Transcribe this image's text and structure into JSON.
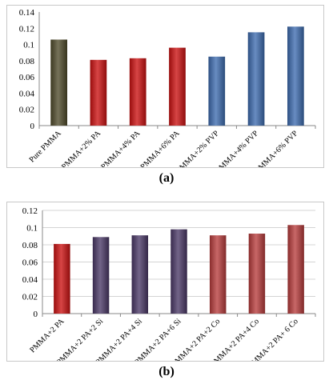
{
  "chart_data": [
    {
      "type": "bar",
      "caption": "(a)",
      "categories": [
        "Pure PMMA",
        "PMMA+2% PA",
        "PMMA+4% PA",
        "PMMA+6% PA",
        "PMMA+2% PVP",
        "PMMA+4% PVP",
        "PMMA+6% PVP"
      ],
      "values": [
        0.106,
        0.081,
        0.083,
        0.096,
        0.085,
        0.115,
        0.122
      ],
      "colors": [
        "#4f4a2a",
        "#cc1111",
        "#cc1111",
        "#cc1111",
        "#3e6cb0",
        "#3e6cb0",
        "#3e6cb0"
      ],
      "ylim": [
        0,
        0.14
      ],
      "yticks": [
        "0",
        "0.02",
        "0.04",
        "0.06",
        "0.08",
        "0.1",
        "0.12",
        "0.14"
      ],
      "grid": false
    },
    {
      "type": "bar",
      "caption": "(b)",
      "categories": [
        "PMMA+2 PA",
        "PMMA+2 PA+2 Si",
        "PMMA+2 PA+4 Si",
        "PMMA+2 PA+6 Si",
        "PMMA+2 PA+2 Co",
        "PMMA+2 PA+4 Co",
        "PMMA+2 PA+ 6 Co"
      ],
      "values": [
        0.081,
        0.089,
        0.091,
        0.098,
        0.091,
        0.093,
        0.103
      ],
      "colors": [
        "#cc1111",
        "#4a3866",
        "#4a3866",
        "#4a3866",
        "#b83c3c",
        "#b83c3c",
        "#b83c3c"
      ],
      "ylim": [
        0,
        0.12
      ],
      "yticks": [
        "0",
        "0.02",
        "0.04",
        "0.06",
        "0.08",
        "0.1",
        "0.12"
      ],
      "grid": true
    }
  ]
}
